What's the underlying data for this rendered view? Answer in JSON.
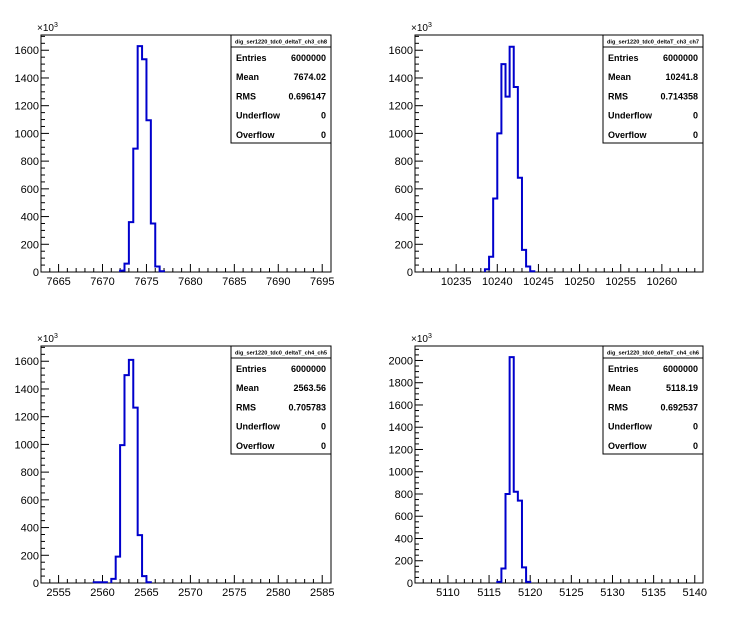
{
  "chart_data": [
    {
      "type": "histogram",
      "title": "dig_ser1220_tdc0_deltaT_ch3_ch8",
      "y_exponent": "3",
      "xlim": [
        7663,
        7696
      ],
      "ylim": [
        0,
        1710
      ],
      "x_ticks": [
        7665,
        7670,
        7675,
        7680,
        7685,
        7690,
        7695
      ],
      "y_ticks": [
        0,
        200,
        400,
        600,
        800,
        1000,
        1200,
        1400,
        1600
      ],
      "bin_width": 0.5,
      "bins": [
        {
          "x": 7672.0,
          "y": 10
        },
        {
          "x": 7672.5,
          "y": 60
        },
        {
          "x": 7673.0,
          "y": 360
        },
        {
          "x": 7673.5,
          "y": 890
        },
        {
          "x": 7674.0,
          "y": 1630
        },
        {
          "x": 7674.5,
          "y": 1535
        },
        {
          "x": 7675.0,
          "y": 1095
        },
        {
          "x": 7675.5,
          "y": 350
        },
        {
          "x": 7676.0,
          "y": 40
        },
        {
          "x": 7676.5,
          "y": 5
        }
      ],
      "stats": {
        "entries": "6000000",
        "mean": "7674.02",
        "rms": "0.696147",
        "underflow": "0",
        "overflow": "0"
      },
      "color": "#0000cc"
    },
    {
      "type": "histogram",
      "title": "dig_ser1220_tdc0_deltaT_ch3_ch7",
      "y_exponent": "3",
      "xlim": [
        10230,
        10265
      ],
      "ylim": [
        0,
        1710
      ],
      "x_ticks": [
        10235,
        10240,
        10245,
        10250,
        10255,
        10260
      ],
      "y_ticks": [
        0,
        200,
        400,
        600,
        800,
        1000,
        1200,
        1400,
        1600
      ],
      "bin_width": 0.5,
      "bins": [
        {
          "x": 10238.5,
          "y": 20
        },
        {
          "x": 10239.0,
          "y": 110
        },
        {
          "x": 10239.5,
          "y": 530
        },
        {
          "x": 10240.0,
          "y": 1000
        },
        {
          "x": 10240.5,
          "y": 1500
        },
        {
          "x": 10241.0,
          "y": 1265
        },
        {
          "x": 10241.5,
          "y": 1625
        },
        {
          "x": 10242.0,
          "y": 1335
        },
        {
          "x": 10242.5,
          "y": 680
        },
        {
          "x": 10243.0,
          "y": 160
        },
        {
          "x": 10243.5,
          "y": 40
        },
        {
          "x": 10244.0,
          "y": 5
        }
      ],
      "stats": {
        "entries": "6000000",
        "mean": "10241.8",
        "rms": "0.714358",
        "underflow": "0",
        "overflow": "0"
      },
      "color": "#0000cc"
    },
    {
      "type": "histogram",
      "title": "dig_ser1220_tdc0_deltaT_ch4_ch5",
      "y_exponent": "3",
      "xlim": [
        2553,
        2586
      ],
      "ylim": [
        0,
        1710
      ],
      "x_ticks": [
        2555,
        2560,
        2565,
        2570,
        2575,
        2580,
        2585
      ],
      "y_ticks": [
        0,
        200,
        400,
        600,
        800,
        1000,
        1200,
        1400,
        1600
      ],
      "bin_width": 0.5,
      "bins": [
        {
          "x": 2559.0,
          "y": 5
        },
        {
          "x": 2559.5,
          "y": 5
        },
        {
          "x": 2560.0,
          "y": 5
        },
        {
          "x": 2561.0,
          "y": 30
        },
        {
          "x": 2561.5,
          "y": 190
        },
        {
          "x": 2562.0,
          "y": 995
        },
        {
          "x": 2562.5,
          "y": 1500
        },
        {
          "x": 2563.0,
          "y": 1610
        },
        {
          "x": 2563.5,
          "y": 1265
        },
        {
          "x": 2564.0,
          "y": 345
        },
        {
          "x": 2564.5,
          "y": 50
        },
        {
          "x": 2565.0,
          "y": 5
        }
      ],
      "stats": {
        "entries": "6000000",
        "mean": "2563.56",
        "rms": "0.705783",
        "underflow": "0",
        "overflow": "0"
      },
      "color": "#0000cc"
    },
    {
      "type": "histogram",
      "title": "dig_ser1220_tdc0_deltaT_ch4_ch6",
      "y_exponent": "3",
      "xlim": [
        5106,
        5141
      ],
      "ylim": [
        0,
        2130
      ],
      "x_ticks": [
        5110,
        5115,
        5120,
        5125,
        5130,
        5135,
        5140
      ],
      "y_ticks": [
        0,
        200,
        400,
        600,
        800,
        1000,
        1200,
        1400,
        1600,
        1800,
        2000
      ],
      "bin_width": 0.5,
      "bins": [
        {
          "x": 5116.0,
          "y": 10
        },
        {
          "x": 5116.5,
          "y": 130
        },
        {
          "x": 5117.0,
          "y": 800
        },
        {
          "x": 5117.5,
          "y": 2030
        },
        {
          "x": 5118.0,
          "y": 820
        },
        {
          "x": 5118.5,
          "y": 740
        },
        {
          "x": 5119.0,
          "y": 140
        },
        {
          "x": 5119.5,
          "y": 10
        }
      ],
      "stats": {
        "entries": "6000000",
        "mean": "5118.19",
        "rms": "0.692537",
        "underflow": "0",
        "overflow": "0"
      },
      "color": "#0000cc"
    }
  ],
  "stats_labels": {
    "entries": "Entries",
    "mean": "Mean",
    "rms": "RMS",
    "underflow": "Underflow",
    "overflow": "Overflow"
  }
}
